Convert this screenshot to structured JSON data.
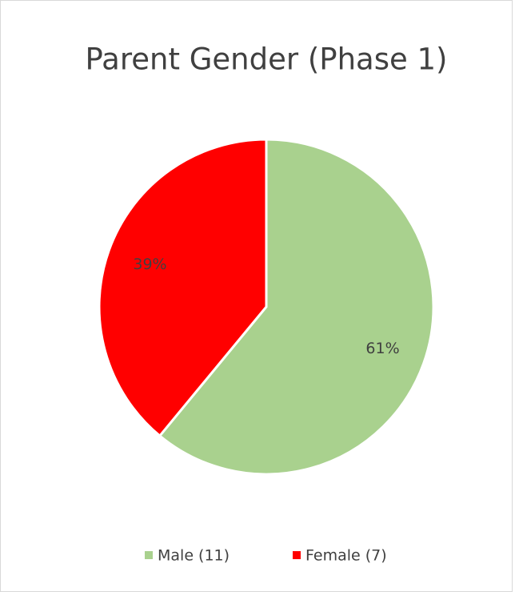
{
  "chart_data": {
    "type": "pie",
    "title": "Parent Gender (Phase 1)",
    "categories": [
      "Male (11)",
      "Female (7)"
    ],
    "values": [
      61,
      39
    ],
    "value_labels": [
      "61%",
      "39%"
    ],
    "colors": [
      "#a9d18e",
      "#ff0000"
    ],
    "legend": "bottom"
  }
}
